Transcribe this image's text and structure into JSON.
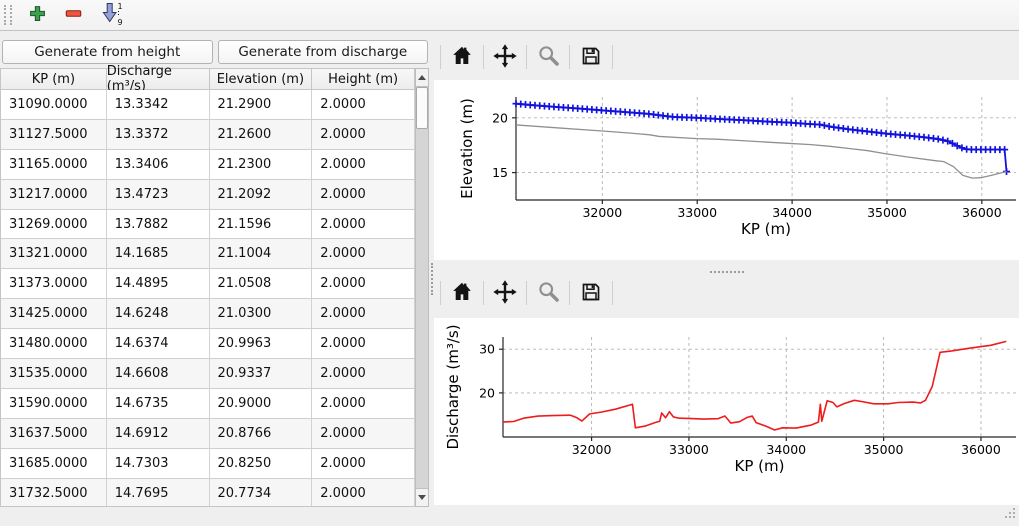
{
  "main_toolbar": {
    "add_tooltip": "add",
    "remove_tooltip": "remove",
    "sort_top_digit": "1",
    "sort_bottom_digit": "9"
  },
  "actions": {
    "generate_from_height": "Generate from height",
    "generate_from_discharge": "Generate from discharge"
  },
  "table": {
    "columns": [
      "KP (m)",
      "Discharge (m³/s)",
      "Elevation (m)",
      "Height (m)"
    ],
    "rows": [
      [
        "31090.0000",
        "13.3342",
        "21.2900",
        "2.0000"
      ],
      [
        "31127.5000",
        "13.3372",
        "21.2600",
        "2.0000"
      ],
      [
        "31165.0000",
        "13.3406",
        "21.2300",
        "2.0000"
      ],
      [
        "31217.0000",
        "13.4723",
        "21.2092",
        "2.0000"
      ],
      [
        "31269.0000",
        "13.7882",
        "21.1596",
        "2.0000"
      ],
      [
        "31321.0000",
        "14.1685",
        "21.1004",
        "2.0000"
      ],
      [
        "31373.0000",
        "14.4895",
        "21.0508",
        "2.0000"
      ],
      [
        "31425.0000",
        "14.6248",
        "21.0300",
        "2.0000"
      ],
      [
        "31480.0000",
        "14.6374",
        "20.9963",
        "2.0000"
      ],
      [
        "31535.0000",
        "14.6608",
        "20.9337",
        "2.0000"
      ],
      [
        "31590.0000",
        "14.6735",
        "20.9000",
        "2.0000"
      ],
      [
        "31637.5000",
        "14.6912",
        "20.8766",
        "2.0000"
      ],
      [
        "31685.0000",
        "14.7303",
        "20.8250",
        "2.0000"
      ],
      [
        "31732.5000",
        "14.7695",
        "20.7734",
        "2.0000"
      ]
    ]
  },
  "colors": {
    "elevation_line": "#1212dd",
    "ground_line": "#909090",
    "discharge_line": "#ee1c1c",
    "grid": "#b3b3b3",
    "spine": "#262626",
    "plus_icon": "#3fa04e",
    "minus_icon": "#ef5642",
    "sort_arrow": "#93a1d8"
  },
  "chart_data": [
    {
      "type": "line",
      "xlabel": "KP (m)",
      "ylabel": "Elevation (m)",
      "xlim": [
        31090,
        36360
      ],
      "ylim": [
        12.5,
        21.9
      ],
      "xticks": [
        32000,
        33000,
        34000,
        35000,
        36000
      ],
      "yticks": [
        15,
        20
      ],
      "grid": true,
      "series": [
        {
          "name": "elevation",
          "color": "#1212dd",
          "width": 1.8,
          "marker": "+",
          "marker_interval_m": 50,
          "points": [
            [
              31090,
              21.29
            ],
            [
              31300,
              21.13
            ],
            [
              31500,
              21.0
            ],
            [
              31750,
              20.85
            ],
            [
              32000,
              20.68
            ],
            [
              32250,
              20.52
            ],
            [
              32500,
              20.35
            ],
            [
              32650,
              20.18
            ],
            [
              32750,
              20.08
            ],
            [
              33000,
              20.0
            ],
            [
              33250,
              19.88
            ],
            [
              33500,
              19.78
            ],
            [
              33750,
              19.65
            ],
            [
              34000,
              19.55
            ],
            [
              34150,
              19.45
            ],
            [
              34300,
              19.38
            ],
            [
              34400,
              19.2
            ],
            [
              34600,
              18.95
            ],
            [
              34800,
              18.75
            ],
            [
              35000,
              18.55
            ],
            [
              35200,
              18.4
            ],
            [
              35400,
              18.22
            ],
            [
              35550,
              18.05
            ],
            [
              35650,
              17.85
            ],
            [
              35750,
              17.4
            ],
            [
              35820,
              17.15
            ],
            [
              35900,
              17.1
            ],
            [
              36240,
              17.1
            ],
            [
              36260,
              15.1
            ]
          ]
        },
        {
          "name": "ground",
          "color": "#909090",
          "width": 1.3,
          "marker": null,
          "points": [
            [
              31090,
              19.35
            ],
            [
              31500,
              19.1
            ],
            [
              32000,
              18.8
            ],
            [
              32300,
              18.6
            ],
            [
              32500,
              18.45
            ],
            [
              32600,
              18.3
            ],
            [
              33000,
              18.1
            ],
            [
              33200,
              18.05
            ],
            [
              33400,
              17.95
            ],
            [
              33700,
              17.8
            ],
            [
              34000,
              17.65
            ],
            [
              34200,
              17.55
            ],
            [
              34400,
              17.4
            ],
            [
              34600,
              17.2
            ],
            [
              34800,
              17.0
            ],
            [
              35000,
              16.7
            ],
            [
              35200,
              16.45
            ],
            [
              35500,
              16.1
            ],
            [
              35600,
              16.0
            ],
            [
              35700,
              15.55
            ],
            [
              35800,
              14.75
            ],
            [
              35900,
              14.5
            ],
            [
              36000,
              14.55
            ],
            [
              36100,
              14.75
            ],
            [
              36260,
              15.1
            ]
          ]
        }
      ]
    },
    {
      "type": "line",
      "xlabel": "KP (m)",
      "ylabel": "Discharge (m³/s)",
      "xlim": [
        31090,
        36360
      ],
      "ylim": [
        9.9,
        32.8
      ],
      "xticks": [
        32000,
        33000,
        34000,
        35000,
        36000
      ],
      "yticks": [
        20,
        30
      ],
      "grid": true,
      "series": [
        {
          "name": "discharge",
          "color": "#ee1c1c",
          "width": 1.6,
          "marker": null,
          "points": [
            [
              31090,
              13.33
            ],
            [
              31200,
              13.45
            ],
            [
              31300,
              14.2
            ],
            [
              31450,
              14.7
            ],
            [
              31600,
              14.8
            ],
            [
              31780,
              14.9
            ],
            [
              31850,
              14.3
            ],
            [
              31900,
              13.55
            ],
            [
              31980,
              15.2
            ],
            [
              32100,
              15.6
            ],
            [
              32250,
              16.3
            ],
            [
              32420,
              17.4
            ],
            [
              32450,
              12.0
            ],
            [
              32550,
              12.4
            ],
            [
              32650,
              13.2
            ],
            [
              32700,
              13.5
            ],
            [
              32720,
              15.4
            ],
            [
              32760,
              14.3
            ],
            [
              32800,
              15.7
            ],
            [
              32840,
              14.5
            ],
            [
              32900,
              14.2
            ],
            [
              33000,
              14.15
            ],
            [
              33150,
              14.0
            ],
            [
              33300,
              14.1
            ],
            [
              33370,
              14.7
            ],
            [
              33430,
              13.1
            ],
            [
              33520,
              13.4
            ],
            [
              33600,
              14.4
            ],
            [
              33650,
              14.7
            ],
            [
              33690,
              13.2
            ],
            [
              33800,
              12.3
            ],
            [
              33880,
              11.5
            ],
            [
              33960,
              12.0
            ],
            [
              34100,
              11.95
            ],
            [
              34250,
              12.6
            ],
            [
              34330,
              13.3
            ],
            [
              34350,
              17.4
            ],
            [
              34365,
              13.5
            ],
            [
              34420,
              18.2
            ],
            [
              34480,
              17.8
            ],
            [
              34520,
              16.8
            ],
            [
              34600,
              17.6
            ],
            [
              34700,
              18.3
            ],
            [
              34780,
              18.0
            ],
            [
              34900,
              17.5
            ],
            [
              35050,
              17.5
            ],
            [
              35150,
              17.8
            ],
            [
              35300,
              17.9
            ],
            [
              35380,
              17.7
            ],
            [
              35430,
              18.3
            ],
            [
              35500,
              21.5
            ],
            [
              35580,
              29.3
            ],
            [
              35700,
              29.6
            ],
            [
              35900,
              30.3
            ],
            [
              36100,
              30.9
            ],
            [
              36260,
              31.8
            ]
          ]
        }
      ]
    }
  ]
}
